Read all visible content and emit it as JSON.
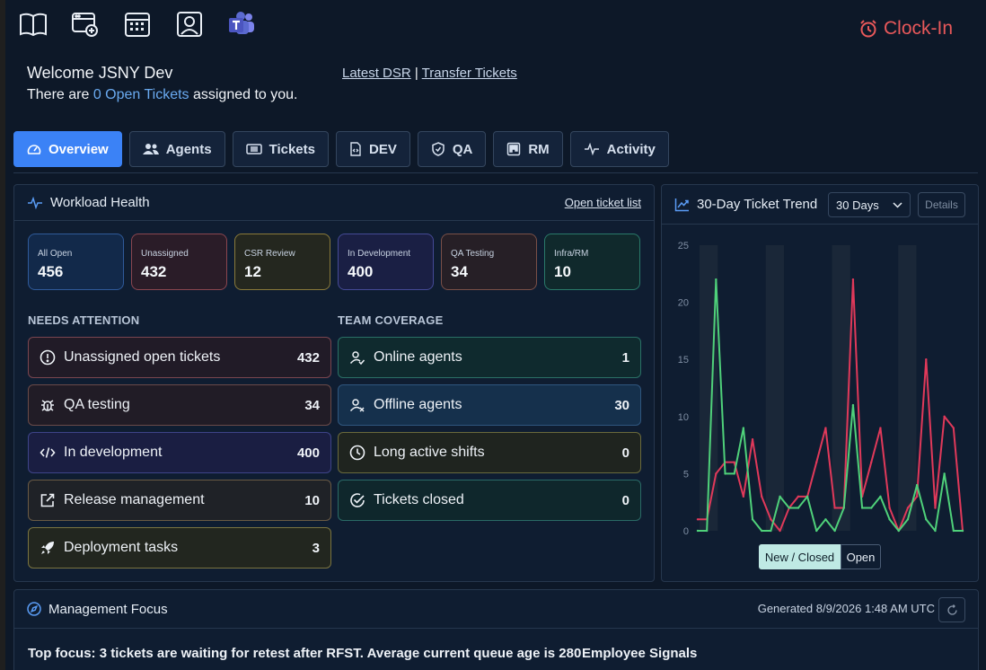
{
  "toolbar": {
    "icons": [
      "book-icon",
      "add-window-icon",
      "calendar-icon",
      "profile-icon",
      "teams-icon"
    ],
    "clock_in": "Clock-In"
  },
  "header": {
    "welcome": "Welcome JSNY Dev",
    "open_prefix": "There are ",
    "open_link": "0 Open Tickets",
    "open_suffix": " assigned to you.",
    "link_dsr": "Latest DSR",
    "separator": " | ",
    "link_transfer": "Transfer Tickets"
  },
  "tabs": [
    {
      "label": "Overview",
      "icon": "gauge-icon"
    },
    {
      "label": "Agents",
      "icon": "users-icon"
    },
    {
      "label": "Tickets",
      "icon": "ticket-icon"
    },
    {
      "label": "DEV",
      "icon": "code-file-icon"
    },
    {
      "label": "QA",
      "icon": "shield-icon"
    },
    {
      "label": "RM",
      "icon": "kanban-icon"
    },
    {
      "label": "Activity",
      "icon": "activity-icon"
    }
  ],
  "workload": {
    "title": "Workload Health",
    "link": "Open ticket list",
    "stats": [
      {
        "label": "All Open",
        "value": "456"
      },
      {
        "label": "Unassigned",
        "value": "432"
      },
      {
        "label": "CSR Review",
        "value": "12"
      },
      {
        "label": "In Development",
        "value": "400"
      },
      {
        "label": "QA Testing",
        "value": "34"
      },
      {
        "label": "Infra/RM",
        "value": "10"
      }
    ],
    "needs_attention_title": "NEEDS ATTENTION",
    "needs_attention": [
      {
        "label": "Unassigned open tickets",
        "count": "432",
        "icon": "alert-circle-icon"
      },
      {
        "label": "QA testing",
        "count": "34",
        "icon": "bug-icon"
      },
      {
        "label": "In development",
        "count": "400",
        "icon": "code-icon"
      },
      {
        "label": "Release management",
        "count": "10",
        "icon": "external-link-icon"
      },
      {
        "label": "Deployment tasks",
        "count": "3",
        "icon": "rocket-icon"
      }
    ],
    "team_coverage_title": "TEAM COVERAGE",
    "team_coverage": [
      {
        "label": "Online agents",
        "count": "1",
        "icon": "user-check-icon"
      },
      {
        "label": "Offline agents",
        "count": "30",
        "icon": "user-x-icon"
      },
      {
        "label": "Long active shifts",
        "count": "0",
        "icon": "clock-icon"
      },
      {
        "label": "Tickets closed",
        "count": "0",
        "icon": "check-circle-icon"
      }
    ]
  },
  "trend": {
    "title": "30-Day Ticket Trend",
    "range": "30 Days",
    "details": "Details",
    "legend_new_closed": "New / Closed",
    "legend_open": "Open"
  },
  "focus": {
    "title": "Management Focus",
    "generated": "Generated 8/9/2026 1:48 AM UTC",
    "top_focus": "Top focus: 3 tickets are waiting for retest after RFST. Average current queue age is 280",
    "employee_signals": "Employee Signals"
  },
  "colors": {
    "accent": "#3b82f6",
    "clock_in": "#e8585a",
    "line_red": "#e0395a",
    "line_green": "#4fd17a"
  },
  "chart_data": {
    "type": "line",
    "x": [
      1,
      2,
      3,
      4,
      5,
      6,
      7,
      8,
      9,
      10,
      11,
      12,
      13,
      14,
      15,
      16,
      17,
      18,
      19,
      20,
      21,
      22,
      23,
      24,
      25,
      26,
      27,
      28,
      29,
      30
    ],
    "ylim": [
      0,
      25
    ],
    "yticks": [
      "25",
      "20",
      "15",
      "10",
      "5",
      "0"
    ],
    "grid": true,
    "series": [
      {
        "color": "#e0395a",
        "values": [
          1,
          1,
          5,
          6,
          6,
          3,
          8,
          3,
          1,
          0,
          2,
          3,
          3,
          6,
          9,
          2,
          2,
          22,
          3,
          6,
          9,
          2,
          0,
          2,
          3,
          15,
          2,
          10,
          9,
          0
        ]
      },
      {
        "color": "#4fd17a",
        "values": [
          0,
          0,
          22,
          5,
          5,
          9,
          1,
          0,
          0,
          3,
          2,
          2,
          3,
          0,
          1,
          0,
          2,
          11,
          2,
          2,
          3,
          1,
          0,
          1,
          4,
          1,
          0,
          5,
          0,
          0
        ]
      }
    ]
  }
}
